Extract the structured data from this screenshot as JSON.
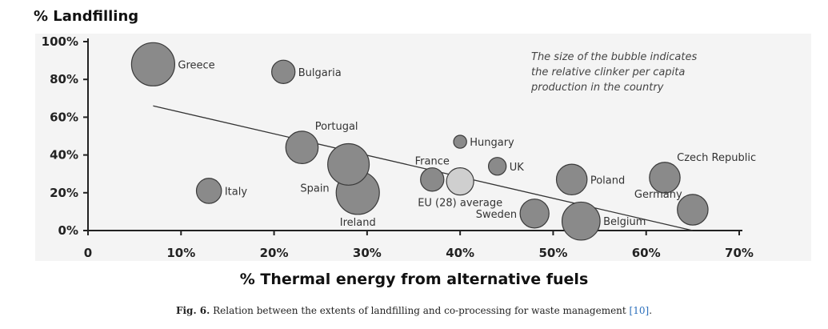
{
  "chart_data": {
    "type": "scatter",
    "title": "",
    "ylabel": "% Landfilling",
    "xlabel": "% Thermal energy from alternative fuels",
    "xlim": [
      0,
      70
    ],
    "ylim": [
      0,
      100
    ],
    "x_ticks": [
      "0",
      "10%",
      "20%",
      "30%",
      "40%",
      "50%",
      "60%",
      "70%"
    ],
    "y_ticks": [
      "0%",
      "20%",
      "40%",
      "60%",
      "80%",
      "100%"
    ],
    "annotation": [
      "The size of the bubble indicates",
      "the relative clinker per capita",
      "production in the country"
    ],
    "points": [
      {
        "label": "Greece",
        "x": 7,
        "y": 88,
        "size": 1.0,
        "label_pos": "right"
      },
      {
        "label": "Bulgaria",
        "x": 21,
        "y": 84,
        "size": 0.54,
        "label_pos": "right"
      },
      {
        "label": "Portugal",
        "x": 23,
        "y": 44,
        "size": 0.75,
        "label_pos": "above-right"
      },
      {
        "label": "Spain",
        "x": 28,
        "y": 35,
        "size": 0.96,
        "label_pos": "below-left"
      },
      {
        "label": "Ireland",
        "x": 29,
        "y": 20,
        "size": 1.0,
        "label_pos": "below"
      },
      {
        "label": "Italy",
        "x": 13,
        "y": 21,
        "size": 0.58,
        "label_pos": "right"
      },
      {
        "label": "Hungary",
        "x": 40,
        "y": 47,
        "size": 0.3,
        "label_pos": "right"
      },
      {
        "label": "France",
        "x": 37,
        "y": 27,
        "size": 0.54,
        "label_pos": "above"
      },
      {
        "label": "EU (28) average",
        "x": 40,
        "y": 26,
        "size": 0.63,
        "label_pos": "below",
        "highlight": true
      },
      {
        "label": "UK",
        "x": 44,
        "y": 34,
        "size": 0.41,
        "label_pos": "right"
      },
      {
        "label": "Poland",
        "x": 52,
        "y": 27,
        "size": 0.71,
        "label_pos": "right"
      },
      {
        "label": "Czech Republic",
        "x": 62,
        "y": 28,
        "size": 0.71,
        "label_pos": "above-right"
      },
      {
        "label": "Sweden",
        "x": 48,
        "y": 9,
        "size": 0.67,
        "label_pos": "left"
      },
      {
        "label": "Belgium",
        "x": 53,
        "y": 5,
        "size": 0.88,
        "label_pos": "right"
      },
      {
        "label": "Germany",
        "x": 65,
        "y": 11,
        "size": 0.71,
        "label_pos": "above-left"
      }
    ],
    "trendline": {
      "x": [
        7,
        65
      ],
      "y": [
        66,
        0
      ]
    },
    "colors": {
      "bubble": "#8a8a8a",
      "bubble_highlight": "#cfcfcf",
      "bubble_stroke": "#3a3a3a",
      "axis": "#222222",
      "trend": "#333333",
      "background": "#f4f4f4"
    }
  },
  "caption": {
    "label": "Fig. 6.",
    "text": " Relation between the extents of landfilling and co-processing for waste management ",
    "ref": "[10]",
    "end": "."
  }
}
